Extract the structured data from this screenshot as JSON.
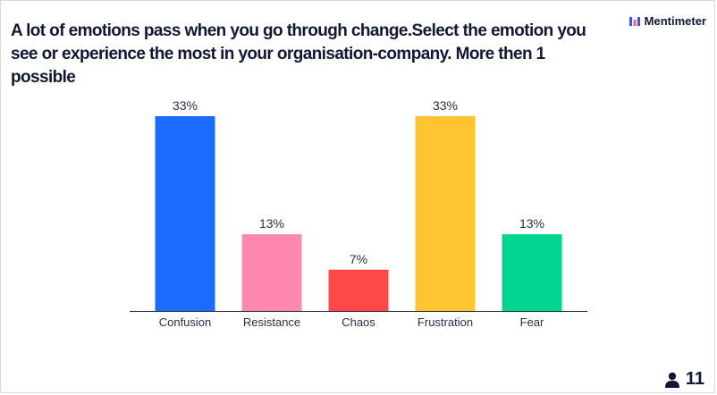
{
  "question": {
    "title": "A lot of emotions pass when you go through change.Select the emotion you see or experience the most in your organisation-company. More then 1 possible"
  },
  "brand": {
    "name": "Mentimeter",
    "logo_icon": "mentimeter-logo-icon",
    "logo_color": "#3b54e8"
  },
  "participants": {
    "count": "11",
    "icon": "person-icon"
  },
  "chart_data": {
    "type": "bar",
    "categories": [
      "Confusion",
      "Resistance",
      "Chaos",
      "Frustration",
      "Fear"
    ],
    "values": [
      33,
      13,
      7,
      33,
      13
    ],
    "value_labels": [
      "33%",
      "13%",
      "7%",
      "33%",
      "13%"
    ],
    "colors": [
      "#1a6cff",
      "#ff88b0",
      "#ff4747",
      "#ffc531",
      "#00d68f"
    ],
    "title": "",
    "xlabel": "",
    "ylabel": "",
    "ylim": [
      0,
      33
    ],
    "grid": false,
    "legend": "none"
  }
}
